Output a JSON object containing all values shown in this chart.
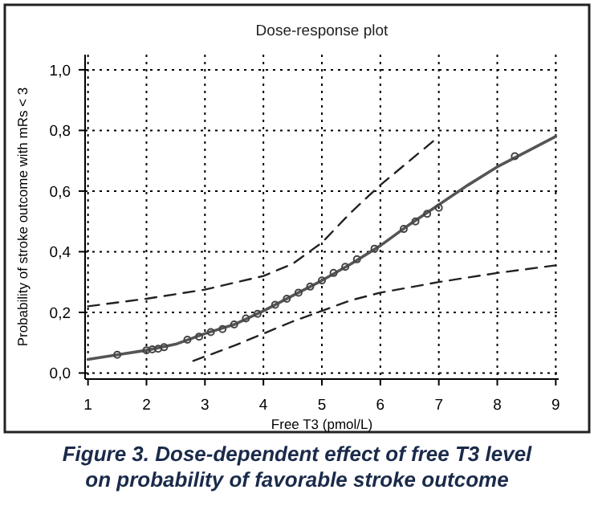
{
  "chart_data": {
    "type": "line",
    "title": "Dose-response plot",
    "xlabel": "Free T3 (pmol/L)",
    "ylabel": "Probability of stroke outcome with mRs < 3",
    "annotations": [
      "Figure 3. Dose-dependent effect of free T3 level on probability of favorable stroke outcome"
    ],
    "xlim": [
      0.95,
      9.05
    ],
    "xticks": [
      1,
      2,
      3,
      4,
      5,
      6,
      7,
      8,
      9
    ],
    "ylim": [
      -0.02,
      1.05
    ],
    "yticks": [
      {
        "value": 0,
        "label": "0,0"
      },
      {
        "value": 0.2,
        "label": "0,2"
      },
      {
        "value": 0.4,
        "label": "0,4"
      },
      {
        "value": 0.6,
        "label": "0,6"
      },
      {
        "value": 0.8,
        "label": "0,8"
      },
      {
        "value": 1,
        "label": "1,0"
      }
    ],
    "grid": true,
    "series": [
      {
        "color": "#555555",
        "line_style": "solid",
        "x": [
          1,
          1.5,
          2,
          2.5,
          3,
          3.5,
          4,
          4.5,
          5,
          5.5,
          6,
          6.5,
          7,
          7.5,
          8,
          8.5,
          9
        ],
        "values": [
          0.045,
          0.06,
          0.075,
          0.095,
          0.13,
          0.16,
          0.205,
          0.255,
          0.305,
          0.36,
          0.42,
          0.49,
          0.555,
          0.62,
          0.68,
          0.73,
          0.78
        ]
      },
      {
        "color": "#222222",
        "line_style": "dashed",
        "x": [
          1,
          2,
          3,
          4,
          4.5,
          5,
          5.5,
          6,
          6.5,
          7
        ],
        "values": [
          0.22,
          0.245,
          0.275,
          0.32,
          0.36,
          0.43,
          0.53,
          0.62,
          0.7,
          0.78
        ]
      },
      {
        "color": "#222222",
        "line_style": "dashed",
        "x": [
          2.8,
          3.5,
          4,
          4.5,
          5,
          5.5,
          6,
          7,
          8,
          9
        ],
        "values": [
          0.04,
          0.09,
          0.13,
          0.17,
          0.205,
          0.24,
          0.265,
          0.3,
          0.33,
          0.355
        ]
      },
      {
        "type": "scatter",
        "color": "#444444",
        "marker": "circle",
        "x": [
          1.5,
          2,
          2.1,
          2.2,
          2.3,
          2.7,
          2.9,
          3.1,
          3.3,
          3.5,
          3.7,
          3.9,
          4.2,
          4.4,
          4.6,
          4.8,
          5,
          5.2,
          5.4,
          5.6,
          5.9,
          6.4,
          6.6,
          6.8,
          7,
          8.3
        ],
        "values": [
          0.06,
          0.075,
          0.078,
          0.08,
          0.085,
          0.11,
          0.12,
          0.135,
          0.145,
          0.16,
          0.18,
          0.195,
          0.225,
          0.245,
          0.265,
          0.285,
          0.305,
          0.33,
          0.35,
          0.375,
          0.41,
          0.475,
          0.5,
          0.525,
          0.545,
          0.715
        ]
      }
    ]
  }
}
